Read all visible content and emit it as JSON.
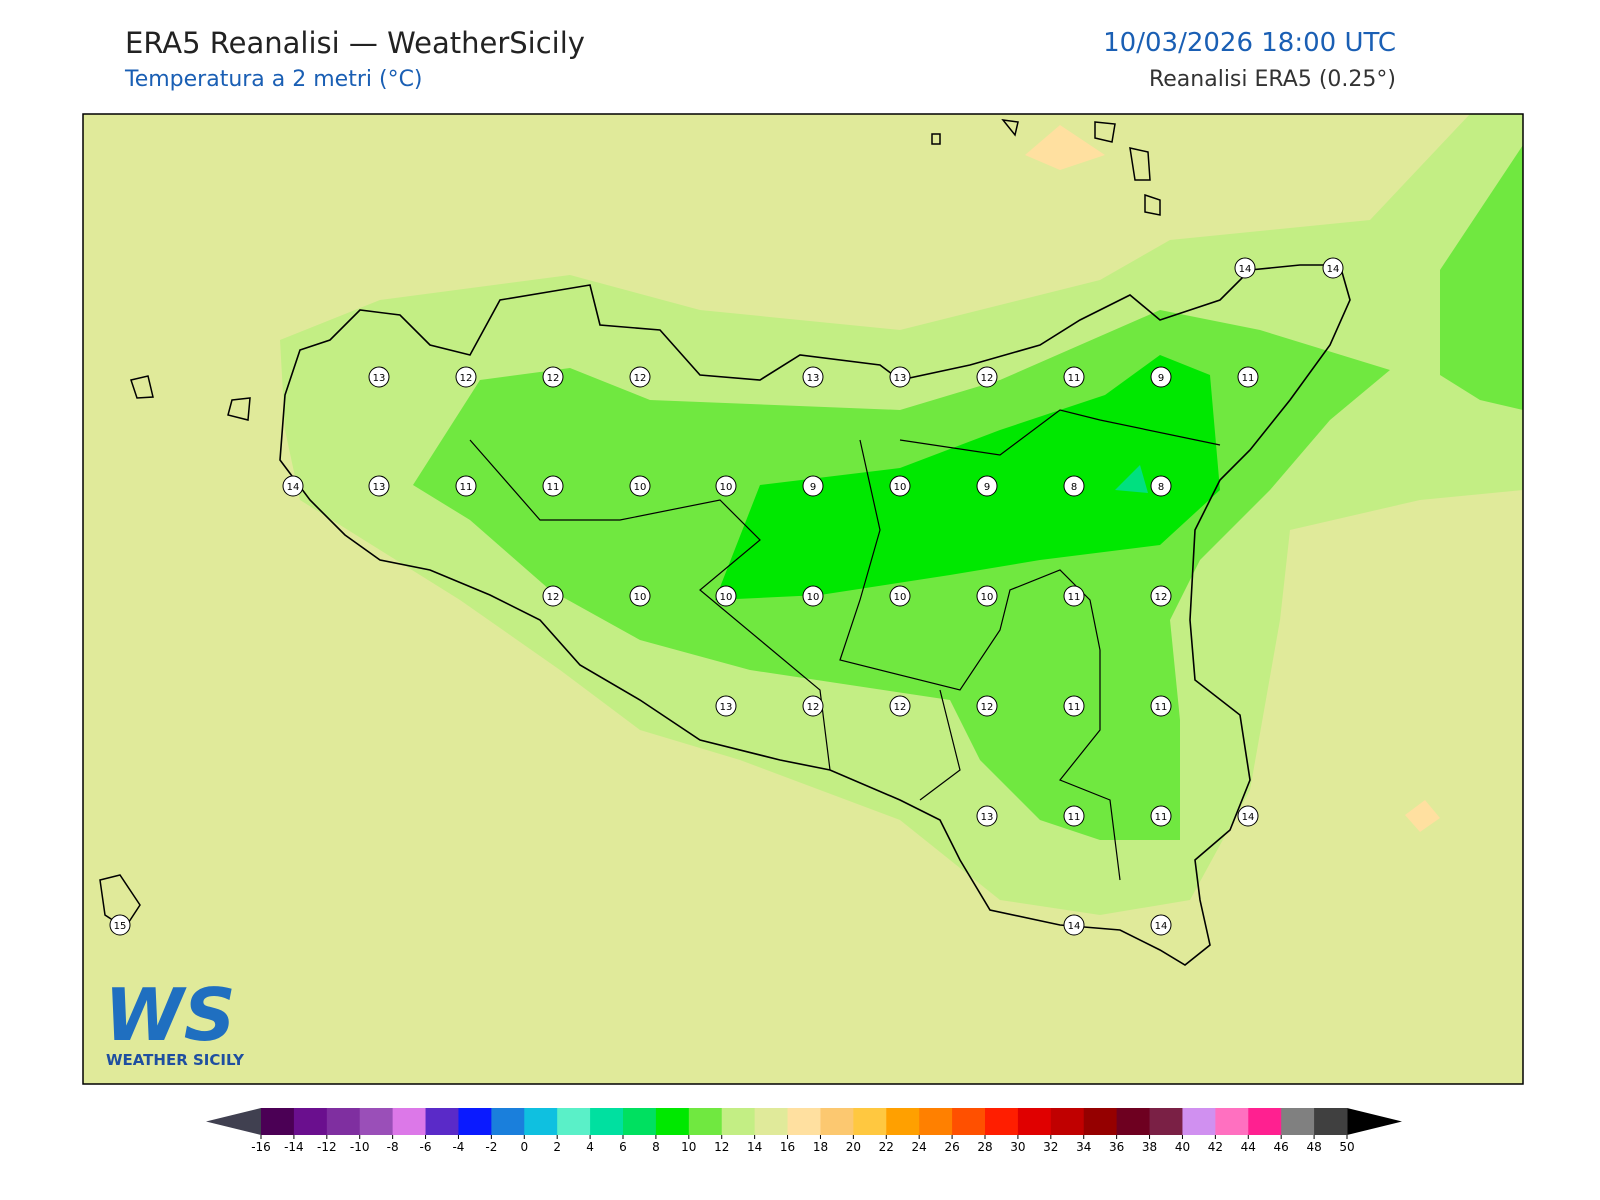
{
  "header": {
    "title": "ERA5 Reanalisi — WeatherSicily",
    "subtitle": "Temperatura a 2 metri (°C)",
    "datetime": "10/03/2026 18:00 UTC",
    "source": "Reanalisi ERA5 (0.25°)"
  },
  "logo": {
    "mark": "WS",
    "name": "WEATHER SICILY"
  },
  "stations": {
    "values": [
      14,
      14,
      13,
      12,
      12,
      12,
      13,
      13,
      12,
      11,
      9,
      11,
      14,
      13,
      11,
      11,
      10,
      10,
      9,
      10,
      9,
      8,
      8,
      12,
      10,
      10,
      10,
      10,
      10,
      11,
      12,
      13,
      12,
      12,
      12,
      11,
      11,
      13,
      11,
      11,
      14,
      15,
      14,
      14
    ]
  },
  "colorbar": {
    "ticks": [
      -16,
      -14,
      -12,
      -10,
      -8,
      -6,
      -4,
      -2,
      0,
      2,
      4,
      6,
      8,
      10,
      12,
      14,
      16,
      18,
      20,
      22,
      24,
      26,
      28,
      30,
      32,
      34,
      36,
      38,
      40,
      42,
      44,
      46,
      48,
      50
    ],
    "colors": [
      "#4b0055",
      "#6a0f8e",
      "#7f2fa0",
      "#9a4fb8",
      "#dc78e8",
      "#5a2ac8",
      "#0a1aff",
      "#1a7fdc",
      "#0fc0e0",
      "#5af0c8",
      "#00e0a0",
      "#00e060",
      "#00e800",
      "#70e840",
      "#c3ee84",
      "#e0ea9a",
      "#ffe0a0",
      "#fcc870",
      "#ffc840",
      "#ffa000",
      "#ff8000",
      "#ff5000",
      "#ff1e00",
      "#e00000",
      "#c00000",
      "#950000",
      "#6e0020",
      "#7a2045",
      "#d090f0",
      "#ff70c0",
      "#ff2090",
      "#808080",
      "#404040"
    ],
    "under_color": "#404050",
    "over_color": "#000000"
  }
}
